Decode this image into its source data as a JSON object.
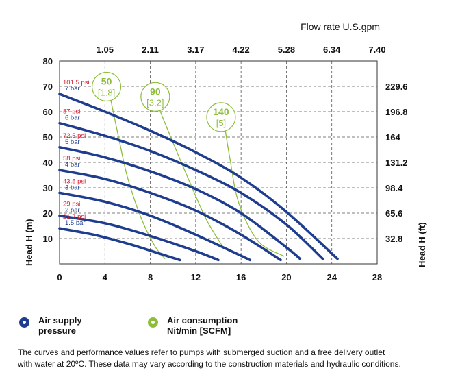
{
  "colors": {
    "pressure_curve": "#1f3d8f",
    "air_curve": "#8dbe3a",
    "psi_label": "#d42030",
    "bar_label": "#1f3d8f",
    "grid": "#555555"
  },
  "legend": {
    "air_supply_line1": "Air supply",
    "air_supply_line2": "pressure",
    "air_consumption_line1": "Air consumption",
    "air_consumption_line2": "Nit/min [SCFM]"
  },
  "footnote": {
    "line1": "The curves and performance values refer to pumps with submerged suction and a free delivery outlet",
    "line2": "with water at 20ºC. These data may vary according to the construction materials and hydraulic conditions."
  },
  "chart_data": {
    "type": "line",
    "title": "Flow rate U.S.gpm",
    "xlabel": "",
    "ylabel": "Head H (m)",
    "ylabel_right": "Head H (ft)",
    "xlim": [
      0,
      28
    ],
    "ylim": [
      0,
      80
    ],
    "x_ticks": [
      "0",
      "4",
      "8",
      "12",
      "16",
      "20",
      "24",
      "28"
    ],
    "y_ticks": [
      "10",
      "20",
      "30",
      "40",
      "50",
      "60",
      "70",
      "80"
    ],
    "top_axis_ticks": [
      "1.05",
      "2.11",
      "3.17",
      "4.22",
      "5.28",
      "6.34",
      "7.40"
    ],
    "right_axis_ticks": [
      "229.6",
      "196.8",
      "164",
      "131.2",
      "98.4",
      "65.6",
      "32.8"
    ],
    "grid": true,
    "series": [
      {
        "name": "1.5 bar",
        "psi": "21.7 psi",
        "x": [
          0,
          3,
          6,
          8.5,
          10.6
        ],
        "y": [
          14,
          11.5,
          8,
          4.5,
          1.5
        ]
      },
      {
        "name": "2 bar",
        "psi": "29 psi",
        "x": [
          0,
          4,
          8,
          12,
          14
        ],
        "y": [
          19,
          16,
          11,
          5,
          1.5
        ]
      },
      {
        "name": "3 bar",
        "psi": "43.5 psi",
        "x": [
          0,
          4,
          8,
          12,
          16.8
        ],
        "y": [
          28,
          24.5,
          19,
          11.5,
          1.5
        ]
      },
      {
        "name": "4 bar",
        "psi": "58 psi",
        "x": [
          0,
          4,
          8,
          12,
          16,
          19.5
        ],
        "y": [
          37,
          33.5,
          28,
          21,
          11.5,
          1.5
        ]
      },
      {
        "name": "5 bar",
        "psi": "72.5 psi",
        "x": [
          0,
          4,
          8,
          12,
          16,
          20,
          21.2
        ],
        "y": [
          46,
          42,
          36.5,
          29.5,
          20,
          6.5,
          2
        ]
      },
      {
        "name": "6 bar",
        "psi": "87 psi",
        "x": [
          0,
          4,
          8,
          12,
          16,
          20,
          23.2
        ],
        "y": [
          55.5,
          50.5,
          44.5,
          37,
          28,
          15.5,
          2
        ]
      },
      {
        "name": "7 bar",
        "psi": "101.5 psi",
        "x": [
          0,
          4,
          8,
          12,
          16,
          20,
          24.5
        ],
        "y": [
          67,
          60,
          52.5,
          44,
          34,
          20.5,
          2
        ]
      }
    ],
    "air_consumption": [
      {
        "label": "50",
        "label2": "[1.8]",
        "x": [
          4.5,
          5.2,
          6,
          7.2,
          8.4,
          9.3
        ],
        "y": [
          65,
          50,
          34,
          18,
          7,
          2
        ]
      },
      {
        "label": "90",
        "label2": "[3.2]",
        "x": [
          8.8,
          9.8,
          11.5,
          13,
          14.5
        ],
        "y": [
          61,
          50,
          32,
          17,
          6
        ]
      },
      {
        "label": "140",
        "label2": "[5]",
        "x": [
          14.6,
          15,
          15.8,
          17.5,
          19.8
        ],
        "y": [
          53,
          42,
          24,
          9,
          3
        ]
      }
    ]
  }
}
